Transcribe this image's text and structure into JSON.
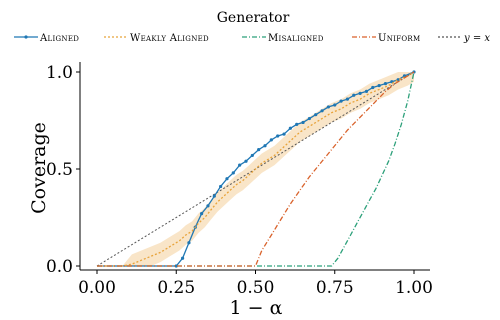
{
  "chart_data": {
    "type": "line",
    "legend_title": "Generator",
    "legend_position": "top",
    "xlabel": "1 − α",
    "ylabel": "Coverage",
    "xlim": [
      0.0,
      1.0
    ],
    "ylim": [
      0.0,
      1.0
    ],
    "x_ticks": [
      "0.00",
      "0.25",
      "0.50",
      "0.75",
      "1.00"
    ],
    "y_ticks": [
      "0.0",
      "0.5",
      "1.0"
    ],
    "grid": false,
    "series": [
      {
        "name": "Aligned",
        "color": "#1f77b4",
        "style": "solid-markers",
        "x": [
          0.0,
          0.25,
          0.27,
          0.29,
          0.31,
          0.33,
          0.35,
          0.37,
          0.39,
          0.41,
          0.43,
          0.45,
          0.47,
          0.49,
          0.51,
          0.53,
          0.55,
          0.57,
          0.59,
          0.61,
          0.63,
          0.65,
          0.67,
          0.69,
          0.71,
          0.73,
          0.75,
          0.77,
          0.79,
          0.81,
          0.83,
          0.85,
          0.87,
          0.89,
          0.91,
          0.93,
          0.95,
          0.97,
          1.0
        ],
        "y": [
          0.0,
          0.0,
          0.04,
          0.12,
          0.2,
          0.27,
          0.31,
          0.36,
          0.41,
          0.45,
          0.48,
          0.52,
          0.54,
          0.57,
          0.6,
          0.62,
          0.65,
          0.67,
          0.68,
          0.71,
          0.73,
          0.74,
          0.76,
          0.78,
          0.8,
          0.82,
          0.83,
          0.85,
          0.86,
          0.88,
          0.89,
          0.9,
          0.92,
          0.93,
          0.94,
          0.95,
          0.96,
          0.98,
          1.0
        ]
      },
      {
        "name": "Weakly Aligned",
        "color": "#e8a33a",
        "style": "dotted-band",
        "x": [
          0.0,
          0.08,
          0.11,
          0.14,
          0.17,
          0.2,
          0.23,
          0.26,
          0.28,
          0.3,
          0.32,
          0.34,
          0.36,
          0.38,
          0.4,
          0.42,
          0.44,
          0.46,
          0.48,
          0.5,
          0.52,
          0.54,
          0.56,
          0.58,
          0.6,
          0.62,
          0.64,
          0.66,
          0.68,
          0.7,
          0.72,
          0.74,
          0.77,
          0.8,
          0.83,
          0.86,
          0.89,
          0.92,
          0.95,
          0.98,
          1.0
        ],
        "y": [
          0.0,
          0.0,
          0.01,
          0.03,
          0.05,
          0.07,
          0.1,
          0.13,
          0.16,
          0.18,
          0.22,
          0.25,
          0.29,
          0.33,
          0.36,
          0.39,
          0.42,
          0.44,
          0.47,
          0.5,
          0.53,
          0.55,
          0.57,
          0.6,
          0.63,
          0.66,
          0.69,
          0.71,
          0.73,
          0.75,
          0.77,
          0.79,
          0.81,
          0.84,
          0.86,
          0.89,
          0.91,
          0.93,
          0.96,
          0.98,
          1.0
        ],
        "band": 0.05
      },
      {
        "name": "Misaligned",
        "color": "#2ca07a",
        "style": "dash-dot",
        "x": [
          0.0,
          0.74,
          0.76,
          0.78,
          0.8,
          0.82,
          0.84,
          0.86,
          0.88,
          0.9,
          0.92,
          0.94,
          0.96,
          0.98,
          1.0
        ],
        "y": [
          0.0,
          0.0,
          0.04,
          0.1,
          0.16,
          0.22,
          0.28,
          0.34,
          0.4,
          0.47,
          0.54,
          0.63,
          0.73,
          0.85,
          1.0
        ]
      },
      {
        "name": "Uniform",
        "color": "#d9622b",
        "style": "dash-dot",
        "x": [
          0.0,
          0.5,
          0.52,
          0.55,
          0.58,
          0.61,
          0.64,
          0.67,
          0.7,
          0.73,
          0.76,
          0.79,
          0.82,
          0.85,
          0.88,
          0.91,
          0.94,
          0.97,
          1.0
        ],
        "y": [
          0.0,
          0.0,
          0.08,
          0.16,
          0.24,
          0.32,
          0.39,
          0.46,
          0.52,
          0.58,
          0.64,
          0.7,
          0.75,
          0.8,
          0.85,
          0.9,
          0.94,
          0.97,
          1.0
        ]
      },
      {
        "name": "y = x",
        "color": "#555555",
        "style": "dotted",
        "x": [
          0.0,
          1.0
        ],
        "y": [
          0.0,
          1.0
        ]
      }
    ]
  }
}
